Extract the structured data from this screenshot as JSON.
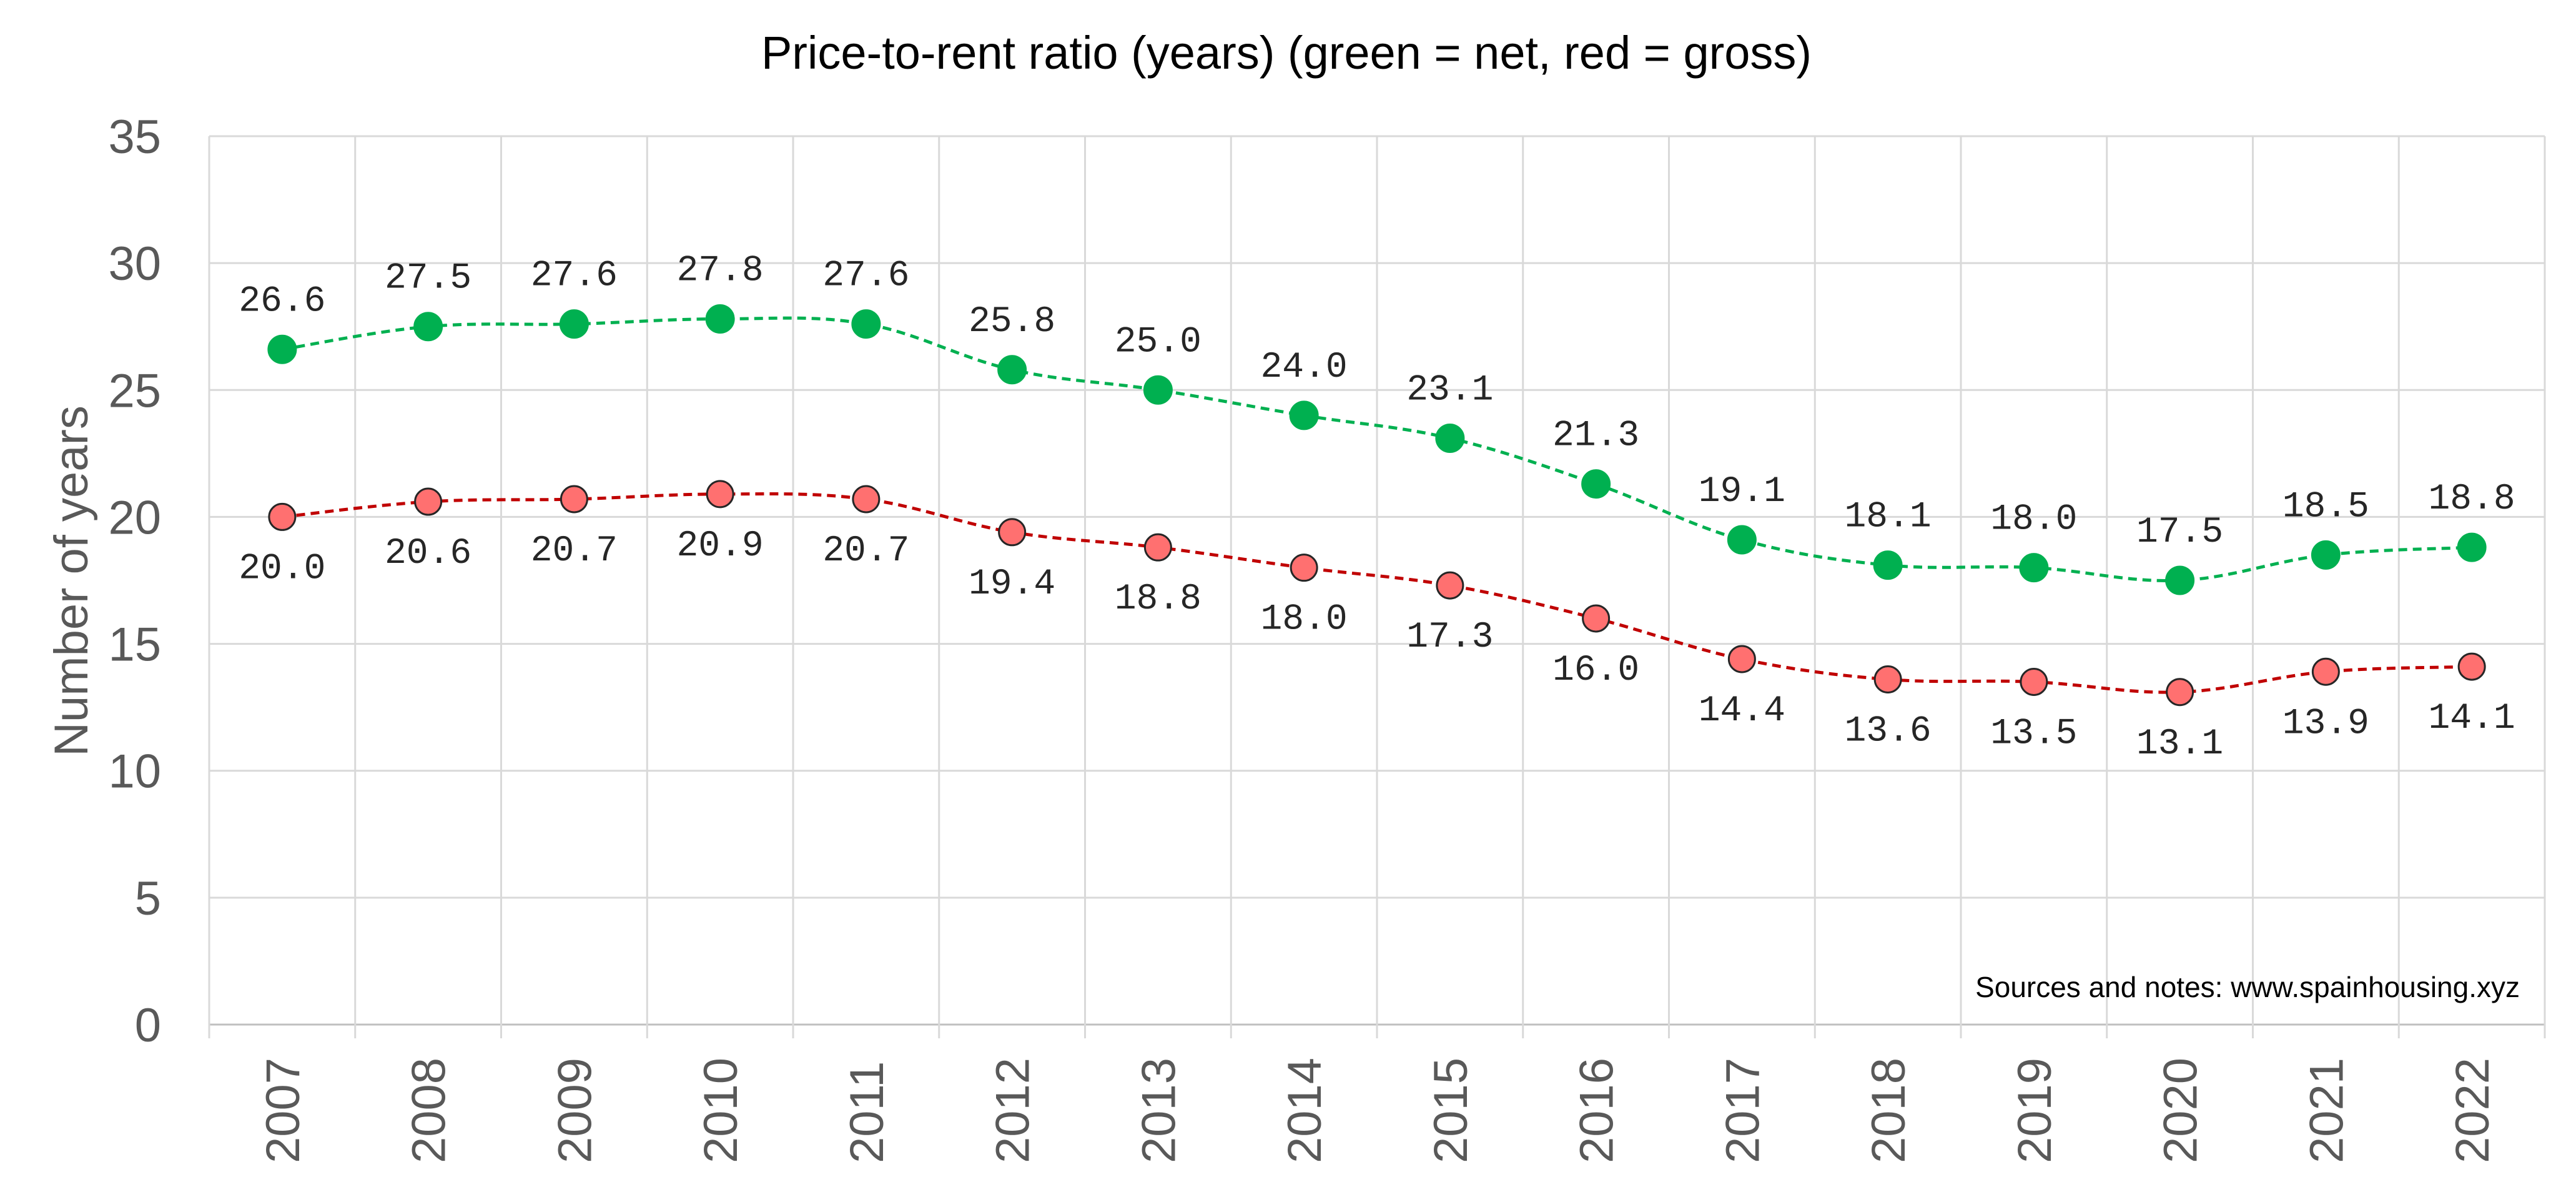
{
  "chart_data": {
    "type": "line",
    "title": "Price-to-rent ratio (years) (green = net, red = gross)",
    "xlabel": "",
    "ylabel": "Number of years",
    "ylim": [
      0,
      35
    ],
    "yticks": [
      "0",
      "5",
      "10",
      "15",
      "20",
      "25",
      "30",
      "35"
    ],
    "categories": [
      "2007",
      "2008",
      "2009",
      "2010",
      "2011",
      "2012",
      "2013",
      "2014",
      "2015",
      "2016",
      "2017",
      "2018",
      "2019",
      "2020",
      "2021",
      "2022"
    ],
    "series": [
      {
        "color": "#00b050",
        "marker_color": "#00b050",
        "values": [
          26.6,
          27.5,
          27.6,
          27.8,
          27.6,
          25.8,
          25.0,
          24.0,
          23.1,
          21.3,
          19.1,
          18.1,
          18.0,
          17.5,
          18.5,
          18.8
        ],
        "labels": [
          "26.6",
          "27.5",
          "27.6",
          "27.8",
          "27.6",
          "25.8",
          "25.0",
          "24.0",
          "23.1",
          "21.3",
          "19.1",
          "18.1",
          "18.0",
          "17.5",
          "18.5",
          "18.8"
        ],
        "label_position": "above"
      },
      {
        "color": "#c00000",
        "marker_color": "#ff7070",
        "values": [
          20.0,
          20.6,
          20.7,
          20.9,
          20.7,
          19.4,
          18.8,
          18.0,
          17.3,
          16.0,
          14.4,
          13.6,
          13.5,
          13.1,
          13.9,
          14.1
        ],
        "labels": [
          "20.0",
          "20.6",
          "20.7",
          "20.9",
          "20.7",
          "19.4",
          "18.8",
          "18.0",
          "17.3",
          "16.0",
          "14.4",
          "13.6",
          "13.5",
          "13.1",
          "13.9",
          "14.1"
        ],
        "label_position": "below"
      }
    ],
    "line_style": "dashed",
    "grid": true,
    "legend": "none",
    "annotation": "Sources and notes: www.spainhousing.xyz"
  }
}
